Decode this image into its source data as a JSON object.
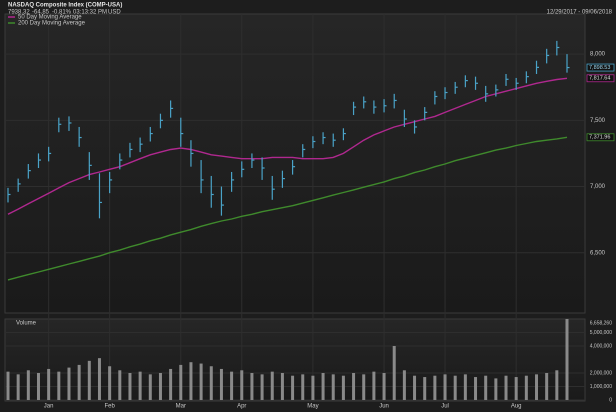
{
  "chart_data": {
    "type": "ohlc",
    "title": "NASDAQ Composite Index (COMP-USA)",
    "quote": {
      "last": "7938.32",
      "change": "-64.85",
      "change_pct": "-0.81%",
      "time": "03:13:32 PM",
      "currency": "USD"
    },
    "date_range": "12/29/2017 - 09/06/2018",
    "categories": [
      null,
      null,
      null,
      null,
      "Jan",
      null,
      null,
      null,
      null,
      null,
      "Feb",
      null,
      null,
      null,
      null,
      null,
      null,
      "Mar",
      null,
      null,
      null,
      null,
      null,
      "Apr",
      null,
      null,
      null,
      null,
      null,
      null,
      "May",
      null,
      null,
      null,
      null,
      null,
      null,
      "Jun",
      null,
      null,
      null,
      null,
      null,
      "Jul",
      null,
      null,
      null,
      null,
      null,
      null,
      "Aug",
      null,
      null,
      null,
      null,
      null
    ],
    "high": [
      6990,
      7060,
      7170,
      7250,
      7300,
      7520,
      7530,
      7450,
      7260,
      7100,
      7110,
      7250,
      7330,
      7370,
      7450,
      7550,
      7650,
      7520,
      7350,
      7200,
      7080,
      7000,
      7110,
      7190,
      7250,
      7220,
      7080,
      7120,
      7200,
      7320,
      7380,
      7410,
      7400,
      7440,
      7640,
      7680,
      7650,
      7660,
      7700,
      7580,
      7500,
      7600,
      7720,
      7750,
      7790,
      7840,
      7830,
      7760,
      7770,
      7850,
      7820,
      7870,
      7950,
      8040,
      8100,
      8000
    ],
    "low": [
      6880,
      6960,
      7060,
      7140,
      7190,
      7410,
      7420,
      7300,
      7050,
      6760,
      6950,
      7130,
      7220,
      7260,
      7340,
      7440,
      7520,
      7300,
      7150,
      6950,
      6840,
      6780,
      6960,
      7070,
      7140,
      7050,
      6900,
      6990,
      7090,
      7220,
      7290,
      7320,
      7300,
      7350,
      7540,
      7590,
      7550,
      7560,
      7590,
      7450,
      7400,
      7500,
      7620,
      7660,
      7700,
      7750,
      7730,
      7640,
      7680,
      7760,
      7730,
      7780,
      7850,
      7930,
      7990,
      7860
    ],
    "close": [
      6940,
      7020,
      7120,
      7200,
      7250,
      7470,
      7480,
      7370,
      7160,
      6880,
      7050,
      7200,
      7280,
      7320,
      7400,
      7500,
      7590,
      7400,
      7250,
      7050,
      6940,
      6860,
      7050,
      7130,
      7200,
      7140,
      6980,
      7060,
      7150,
      7280,
      7340,
      7370,
      7350,
      7400,
      7600,
      7640,
      7600,
      7610,
      7650,
      7510,
      7450,
      7560,
      7680,
      7710,
      7750,
      7800,
      7780,
      7700,
      7730,
      7810,
      7780,
      7830,
      7900,
      7990,
      8050,
      7898.53
    ],
    "close_label": "7,898.53",
    "color": "#4aa3c8",
    "series": [
      {
        "name": "50 Day Moving Average",
        "color": "#b0288f",
        "last_label": "7,817.64",
        "values": [
          6790,
          6830,
          6870,
          6910,
          6950,
          6990,
          7030,
          7060,
          7090,
          7110,
          7130,
          7150,
          7180,
          7210,
          7240,
          7260,
          7280,
          7290,
          7280,
          7260,
          7240,
          7230,
          7220,
          7210,
          7210,
          7210,
          7220,
          7220,
          7220,
          7210,
          7210,
          7210,
          7220,
          7250,
          7300,
          7350,
          7390,
          7420,
          7450,
          7470,
          7490,
          7510,
          7530,
          7560,
          7590,
          7620,
          7650,
          7680,
          7700,
          7720,
          7740,
          7760,
          7780,
          7795,
          7808,
          7817.64
        ]
      },
      {
        "name": "200 Day Moving Average",
        "color": "#3f8a2c",
        "last_label": "7,371.96",
        "values": [
          6295,
          6315,
          6335,
          6355,
          6375,
          6395,
          6415,
          6435,
          6455,
          6475,
          6500,
          6520,
          6545,
          6565,
          6590,
          6610,
          6635,
          6655,
          6675,
          6700,
          6720,
          6740,
          6755,
          6775,
          6790,
          6810,
          6825,
          6840,
          6855,
          6875,
          6895,
          6915,
          6935,
          6955,
          6975,
          6995,
          7015,
          7035,
          7060,
          7080,
          7105,
          7125,
          7150,
          7170,
          7195,
          7215,
          7235,
          7255,
          7275,
          7290,
          7310,
          7325,
          7340,
          7350,
          7360,
          7371.96
        ]
      }
    ],
    "ylim": [
      6045,
      8303
    ],
    "yticks": [
      {
        "value": 6500,
        "label": "6,500"
      },
      {
        "value": 7000,
        "label": "7,000"
      },
      {
        "value": 7500,
        "label": "7,500"
      },
      {
        "value": 8000,
        "label": "8,000"
      }
    ],
    "grid": true,
    "volume": {
      "label": "Volume",
      "color": "#8a8a8a",
      "last_label": "6,658,260",
      "values": [
        2100000,
        1900000,
        2200000,
        2000000,
        2300000,
        2100000,
        2400000,
        2600000,
        2900000,
        3100000,
        2500000,
        2200000,
        2000000,
        2100000,
        1900000,
        2000000,
        2300000,
        2600000,
        2800000,
        2700000,
        2500000,
        2300000,
        2100000,
        2200000,
        2000000,
        1900000,
        2100000,
        2000000,
        1800000,
        1900000,
        1800000,
        2000000,
        1900000,
        1800000,
        2000000,
        1900000,
        2100000,
        2000000,
        4000000,
        2200000,
        1800000,
        1700000,
        1800000,
        1900000,
        1800000,
        1900000,
        1700000,
        1800000,
        1600000,
        1800000,
        1700000,
        1800000,
        1900000,
        2000000,
        2200000,
        6658260
      ],
      "ylim": [
        0,
        6000000
      ],
      "yticks": [
        0,
        {
          "value": 1000000,
          "label": "1,000,000"
        },
        {
          "value": 2000000,
          "label": "2,000,000"
        },
        {
          "value": 4000000,
          "label": "4,000,000"
        },
        {
          "value": 5000000,
          "label": "5,000,000"
        }
      ]
    }
  }
}
